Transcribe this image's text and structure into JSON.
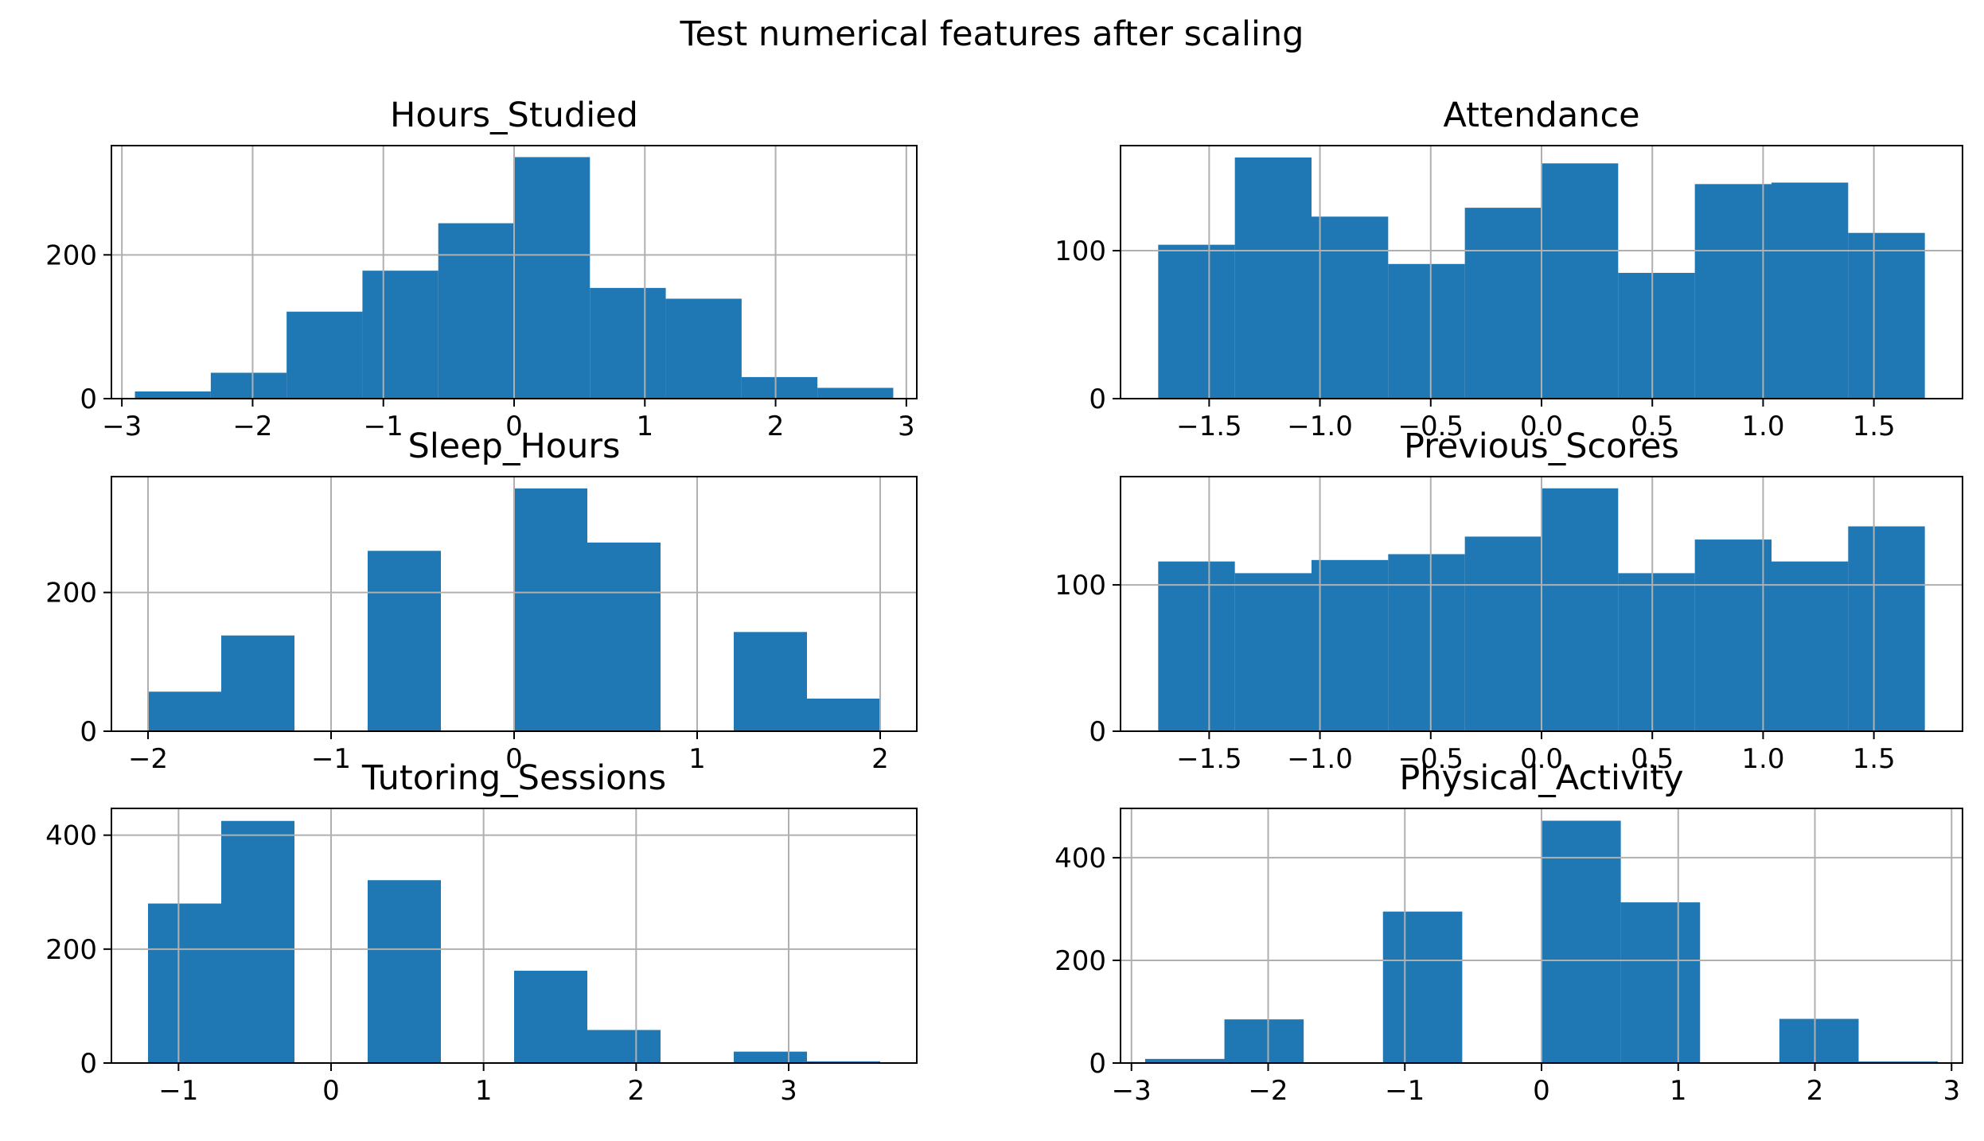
{
  "title": "Test numerical features after scaling",
  "colors": {
    "bar": "#1f77b4",
    "grid": "#b0b0b0",
    "axis": "#000000"
  },
  "chart_data": [
    {
      "type": "bar",
      "title": "Hours_Studied",
      "bin_edges": [
        -2.9,
        -2.32,
        -1.74,
        -1.16,
        -0.58,
        0.0,
        0.58,
        1.16,
        1.74,
        2.32,
        2.9
      ],
      "values": [
        10,
        36,
        121,
        178,
        244,
        336,
        154,
        139,
        30,
        15
      ],
      "xlim": [
        -3.08,
        3.08
      ],
      "ylim": [
        0,
        352
      ],
      "xticks": [
        -3,
        -2,
        -1,
        0,
        1,
        2,
        3
      ],
      "xtick_labels": [
        "−3",
        "−2",
        "−1",
        "0",
        "1",
        "2",
        "3"
      ],
      "yticks": [
        0,
        200
      ],
      "ytick_labels": [
        "0",
        "200"
      ],
      "grid": true
    },
    {
      "type": "bar",
      "title": "Attendance",
      "bin_edges": [
        -1.73,
        -1.384,
        -1.038,
        -0.692,
        -0.346,
        0.0,
        0.346,
        0.692,
        1.038,
        1.384,
        1.73
      ],
      "values": [
        104,
        163,
        123,
        91,
        129,
        159,
        85,
        145,
        146,
        112
      ],
      "xlim": [
        -1.9,
        1.9
      ],
      "ylim": [
        0,
        171
      ],
      "xticks": [
        -1.5,
        -1.0,
        -0.5,
        0.0,
        0.5,
        1.0,
        1.5
      ],
      "xtick_labels": [
        "−1.5",
        "−1.0",
        "−0.5",
        "0.0",
        "0.5",
        "1.0",
        "1.5"
      ],
      "yticks": [
        0,
        100
      ],
      "ytick_labels": [
        "0",
        "100"
      ],
      "grid": true
    },
    {
      "type": "bar",
      "title": "Sleep_Hours",
      "bin_edges": [
        -2.0,
        -1.6,
        -1.2,
        -0.8,
        -0.4,
        0.0,
        0.4,
        0.8,
        1.2,
        1.6,
        2.0
      ],
      "values": [
        57,
        138,
        0,
        260,
        0,
        350,
        272,
        0,
        143,
        47
      ],
      "xlim": [
        -2.2,
        2.2
      ],
      "ylim": [
        0,
        367
      ],
      "xticks": [
        -2,
        -1,
        0,
        1,
        2
      ],
      "xtick_labels": [
        "−2",
        "−1",
        "0",
        "1",
        "2"
      ],
      "yticks": [
        0,
        200
      ],
      "ytick_labels": [
        "0",
        "200"
      ],
      "grid": true
    },
    {
      "type": "bar",
      "title": "Previous_Scores",
      "bin_edges": [
        -1.73,
        -1.384,
        -1.038,
        -0.692,
        -0.346,
        0.0,
        0.346,
        0.692,
        1.038,
        1.384,
        1.73
      ],
      "values": [
        116,
        108,
        117,
        121,
        133,
        166,
        108,
        131,
        116,
        140
      ],
      "xlim": [
        -1.9,
        1.9
      ],
      "ylim": [
        0,
        174
      ],
      "xticks": [
        -1.5,
        -1.0,
        -0.5,
        0.0,
        0.5,
        1.0,
        1.5
      ],
      "xtick_labels": [
        "−1.5",
        "−1.0",
        "−0.5",
        "0.0",
        "0.5",
        "1.0",
        "1.5"
      ],
      "yticks": [
        0,
        100
      ],
      "ytick_labels": [
        "0",
        "100"
      ],
      "grid": true
    },
    {
      "type": "bar",
      "title": "Tutoring_Sessions",
      "bin_edges": [
        -1.2,
        -0.72,
        -0.24,
        0.24,
        0.72,
        1.2,
        1.68,
        2.16,
        2.64,
        3.12,
        3.6
      ],
      "values": [
        280,
        425,
        0,
        321,
        0,
        162,
        58,
        0,
        20,
        3
      ],
      "xlim": [
        -1.44,
        3.84
      ],
      "ylim": [
        0,
        447
      ],
      "xticks": [
        -1,
        0,
        1,
        2,
        3
      ],
      "xtick_labels": [
        "−1",
        "0",
        "1",
        "2",
        "3"
      ],
      "yticks": [
        0,
        200,
        400
      ],
      "ytick_labels": [
        "0",
        "200",
        "400"
      ],
      "grid": true
    },
    {
      "type": "bar",
      "title": "Physical_Activity",
      "bin_edges": [
        -2.9,
        -2.32,
        -1.74,
        -1.16,
        -0.58,
        0.0,
        0.58,
        1.16,
        1.74,
        2.32,
        2.9
      ],
      "values": [
        8,
        85,
        0,
        295,
        0,
        472,
        313,
        0,
        86,
        3
      ],
      "xlim": [
        -3.08,
        3.08
      ],
      "ylim": [
        0,
        496
      ],
      "xticks": [
        -3,
        -2,
        -1,
        0,
        1,
        2,
        3
      ],
      "xtick_labels": [
        "−3",
        "−2",
        "−1",
        "0",
        "1",
        "2",
        "3"
      ],
      "yticks": [
        0,
        200,
        400
      ],
      "ytick_labels": [
        "0",
        "200",
        "400"
      ],
      "grid": true
    }
  ]
}
